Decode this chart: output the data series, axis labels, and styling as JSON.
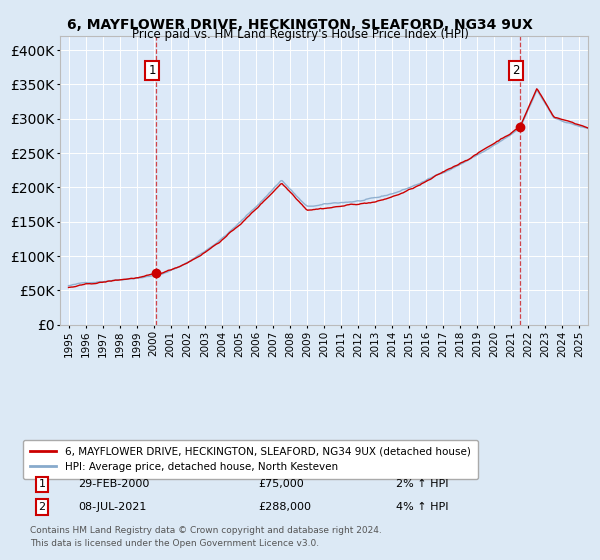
{
  "title1": "6, MAYFLOWER DRIVE, HECKINGTON, SLEAFORD, NG34 9UX",
  "title2": "Price paid vs. HM Land Registry's House Price Index (HPI)",
  "bg_color": "#dce9f5",
  "plot_bg": "#dce9f8",
  "red_color": "#cc0000",
  "blue_color": "#88aacc",
  "sale1_date": 2000.16,
  "sale1_price": 75000,
  "sale2_date": 2021.52,
  "sale2_price": 288000,
  "legend_line1": "6, MAYFLOWER DRIVE, HECKINGTON, SLEAFORD, NG34 9UX (detached house)",
  "legend_line2": "HPI: Average price, detached house, North Kesteven",
  "footnote1": "Contains HM Land Registry data © Crown copyright and database right 2024.",
  "footnote2": "This data is licensed under the Open Government Licence v3.0.",
  "ylim": [
    0,
    420000
  ],
  "xlim_start": 1994.5,
  "xlim_end": 2025.5
}
